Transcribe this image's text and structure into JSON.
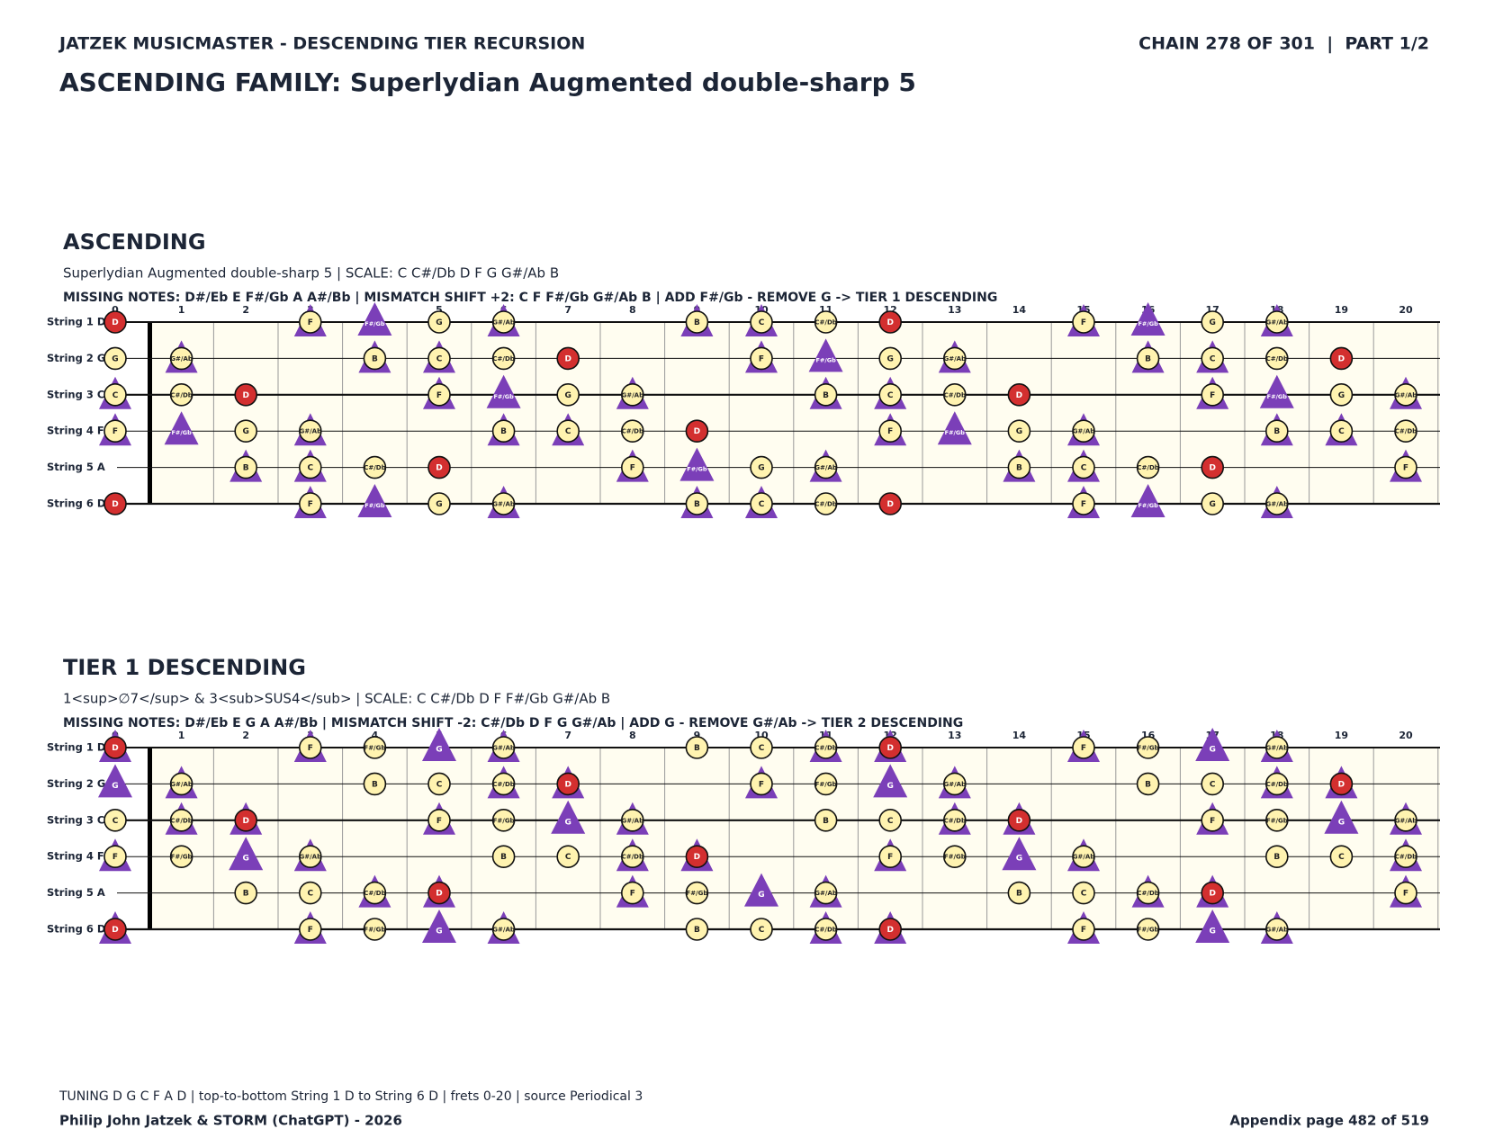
{
  "header": {
    "left": "JATZEK MUSICMASTER - DESCENDING TIER RECURSION",
    "right": "CHAIN 278 OF 301  |  PART 1/2",
    "title": "ASCENDING FAMILY: Superlydian Augmented double-sharp 5"
  },
  "frets": [
    0,
    1,
    2,
    3,
    4,
    5,
    6,
    7,
    8,
    9,
    10,
    11,
    12,
    13,
    14,
    15,
    16,
    17,
    18,
    19,
    20
  ],
  "boards": [
    {
      "heading": "ASCENDING",
      "subtitle": "Superlydian Augmented double-sharp 5  |  SCALE: C C#/Db D F G G#/Ab B",
      "missing": "MISSING NOTES: D#/Eb E F#/Gb A A#/Bb  |  MISMATCH SHIFT +2: C F F#/Gb G#/Ab B  |  ADD F#/Gb - REMOVE G -> TIER 1 DESCENDING",
      "strings": [
        {
          "label": "String 1 D",
          "frets": [
            0,
            3,
            4,
            5,
            6,
            9,
            10,
            11,
            12,
            15,
            16,
            17,
            18
          ],
          "notes": [
            "D",
            "F",
            "F#/Gb",
            "G",
            "G#/Ab",
            "B",
            "C",
            "C#/Db",
            "D",
            "F",
            "F#/Gb",
            "G",
            "G#/Ab"
          ],
          "shapes": [
            "r",
            "ct",
            "t",
            "c",
            "ct",
            "ct",
            "ct",
            "c",
            "r",
            "ct",
            "t",
            "c",
            "ct"
          ]
        },
        {
          "label": "String 2 G",
          "frets": [
            0,
            1,
            4,
            5,
            6,
            7,
            10,
            11,
            12,
            13,
            16,
            17,
            18,
            19
          ],
          "notes": [
            "G",
            "G#/Ab",
            "B",
            "C",
            "C#/Db",
            "D",
            "F",
            "F#/Gb",
            "G",
            "G#/Ab",
            "B",
            "C",
            "C#/Db",
            "D"
          ],
          "shapes": [
            "c",
            "ct",
            "ct",
            "ct",
            "c",
            "r",
            "ct",
            "t",
            "c",
            "ct",
            "ct",
            "ct",
            "c",
            "r"
          ]
        },
        {
          "label": "String 3 C",
          "frets": [
            0,
            1,
            2,
            5,
            6,
            7,
            8,
            11,
            12,
            13,
            14,
            17,
            18,
            19,
            20
          ],
          "notes": [
            "C",
            "C#/Db",
            "D",
            "F",
            "F#/Gb",
            "G",
            "G#/Ab",
            "B",
            "C",
            "C#/Db",
            "D",
            "F",
            "F#/Gb",
            "G",
            "G#/Ab"
          ],
          "shapes": [
            "ct",
            "c",
            "r",
            "ct",
            "t",
            "c",
            "ct",
            "ct",
            "ct",
            "c",
            "r",
            "ct",
            "t",
            "c",
            "ct"
          ]
        },
        {
          "label": "String 4 F",
          "frets": [
            0,
            1,
            2,
            3,
            6,
            7,
            8,
            9,
            12,
            13,
            14,
            15,
            18,
            19,
            20
          ],
          "notes": [
            "F",
            "F#/Gb",
            "G",
            "G#/Ab",
            "B",
            "C",
            "C#/Db",
            "D",
            "F",
            "F#/Gb",
            "G",
            "G#/Ab",
            "B",
            "C",
            "C#/Db"
          ],
          "shapes": [
            "ct",
            "t",
            "c",
            "ct",
            "ct",
            "ct",
            "c",
            "r",
            "ct",
            "t",
            "c",
            "ct",
            "ct",
            "ct",
            "c"
          ]
        },
        {
          "label": "String 5 A",
          "frets": [
            2,
            3,
            4,
            5,
            8,
            9,
            10,
            11,
            14,
            15,
            16,
            17,
            20
          ],
          "notes": [
            "B",
            "C",
            "C#/Db",
            "D",
            "F",
            "F#/Gb",
            "G",
            "G#/Ab",
            "B",
            "C",
            "C#/Db",
            "D",
            "F"
          ],
          "shapes": [
            "ct",
            "ct",
            "c",
            "r",
            "ct",
            "t",
            "c",
            "ct",
            "ct",
            "ct",
            "c",
            "r",
            "ct"
          ]
        },
        {
          "label": "String 6 D",
          "frets": [
            0,
            3,
            4,
            5,
            6,
            9,
            10,
            11,
            12,
            15,
            16,
            17,
            18
          ],
          "notes": [
            "D",
            "F",
            "F#/Gb",
            "G",
            "G#/Ab",
            "B",
            "C",
            "C#/Db",
            "D",
            "F",
            "F#/Gb",
            "G",
            "G#/Ab"
          ],
          "shapes": [
            "r",
            "ct",
            "t",
            "c",
            "ct",
            "ct",
            "ct",
            "c",
            "r",
            "ct",
            "t",
            "c",
            "ct"
          ]
        }
      ]
    },
    {
      "heading": "TIER 1 DESCENDING",
      "subtitle": "1<sup>∅7</sup> & 3<sub>SUS4</sub>  |  SCALE: C C#/Db D F F#/Gb G#/Ab B",
      "missing": "MISSING NOTES: D#/Eb E G A A#/Bb  |  MISMATCH SHIFT -2: C#/Db D F G G#/Ab  |  ADD G - REMOVE G#/Ab -> TIER 2 DESCENDING",
      "strings": [
        {
          "label": "String 1 D",
          "frets": [
            0,
            3,
            4,
            5,
            6,
            9,
            10,
            11,
            12,
            15,
            16,
            17,
            18
          ],
          "notes": [
            "D",
            "F",
            "F#/Gb",
            "G",
            "G#/Ab",
            "B",
            "C",
            "C#/Db",
            "D",
            "F",
            "F#/Gb",
            "G",
            "G#/Ab"
          ],
          "shapes": [
            "rt",
            "ct",
            "c",
            "t",
            "ct",
            "c",
            "c",
            "ct",
            "rt",
            "ct",
            "c",
            "t",
            "ct"
          ]
        },
        {
          "label": "String 2 G",
          "frets": [
            0,
            1,
            4,
            5,
            6,
            7,
            10,
            11,
            12,
            13,
            16,
            17,
            18,
            19
          ],
          "notes": [
            "G",
            "G#/Ab",
            "B",
            "C",
            "C#/Db",
            "D",
            "F",
            "F#/Gb",
            "G",
            "G#/Ab",
            "B",
            "C",
            "C#/Db",
            "D"
          ],
          "shapes": [
            "t",
            "ct",
            "c",
            "c",
            "ct",
            "rt",
            "ct",
            "c",
            "t",
            "ct",
            "c",
            "c",
            "ct",
            "rt"
          ]
        },
        {
          "label": "String 3 C",
          "frets": [
            0,
            1,
            2,
            5,
            6,
            7,
            8,
            11,
            12,
            13,
            14,
            17,
            18,
            19,
            20
          ],
          "notes": [
            "C",
            "C#/Db",
            "D",
            "F",
            "F#/Gb",
            "G",
            "G#/Ab",
            "B",
            "C",
            "C#/Db",
            "D",
            "F",
            "F#/Gb",
            "G",
            "G#/Ab"
          ],
          "shapes": [
            "c",
            "ct",
            "rt",
            "ct",
            "c",
            "t",
            "ct",
            "c",
            "c",
            "ct",
            "rt",
            "ct",
            "c",
            "t",
            "ct"
          ]
        },
        {
          "label": "String 4 F",
          "frets": [
            0,
            1,
            2,
            3,
            6,
            7,
            8,
            9,
            12,
            13,
            14,
            15,
            18,
            19,
            20
          ],
          "notes": [
            "F",
            "F#/Gb",
            "G",
            "G#/Ab",
            "B",
            "C",
            "C#/Db",
            "D",
            "F",
            "F#/Gb",
            "G",
            "G#/Ab",
            "B",
            "C",
            "C#/Db"
          ],
          "shapes": [
            "ct",
            "c",
            "t",
            "ct",
            "c",
            "c",
            "ct",
            "rt",
            "ct",
            "c",
            "t",
            "ct",
            "c",
            "c",
            "ct"
          ]
        },
        {
          "label": "String 5 A",
          "frets": [
            2,
            3,
            4,
            5,
            8,
            9,
            10,
            11,
            14,
            15,
            16,
            17,
            20
          ],
          "notes": [
            "B",
            "C",
            "C#/Db",
            "D",
            "F",
            "F#/Gb",
            "G",
            "G#/Ab",
            "B",
            "C",
            "C#/Db",
            "D",
            "F"
          ],
          "shapes": [
            "c",
            "c",
            "ct",
            "rt",
            "ct",
            "c",
            "t",
            "ct",
            "c",
            "c",
            "ct",
            "rt",
            "ct"
          ]
        },
        {
          "label": "String 6 D",
          "frets": [
            0,
            3,
            4,
            5,
            6,
            9,
            10,
            11,
            12,
            15,
            16,
            17,
            18
          ],
          "notes": [
            "D",
            "F",
            "F#/Gb",
            "G",
            "G#/Ab",
            "B",
            "C",
            "C#/Db",
            "D",
            "F",
            "F#/Gb",
            "G",
            "G#/Ab"
          ],
          "shapes": [
            "rt",
            "ct",
            "c",
            "t",
            "ct",
            "c",
            "c",
            "ct",
            "rt",
            "ct",
            "c",
            "t",
            "ct"
          ]
        }
      ]
    }
  ],
  "footer": {
    "note": "TUNING D G C F A D | top-to-bottom String 1 D to String 6 D | frets 0-20 | source Periodical 3",
    "credit": "Philip John Jatzek & STORM (ChatGPT) - 2026",
    "page": "Appendix page 482 of 519"
  }
}
